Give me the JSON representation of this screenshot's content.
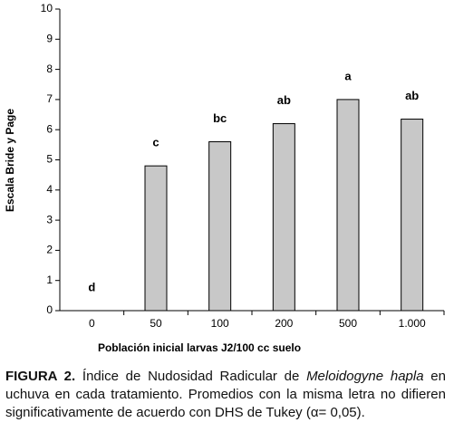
{
  "chart_data": {
    "type": "bar",
    "ylabel": "Escala Bride y Page",
    "xlabel": "Población inicial larvas J2/100 cc suelo",
    "categories": [
      "0",
      "50",
      "100",
      "200",
      "500",
      "1.000"
    ],
    "values": [
      0,
      4.8,
      5.6,
      6.2,
      7.0,
      6.35
    ],
    "letters": [
      "d",
      "c",
      "bc",
      "ab",
      "a",
      "ab"
    ],
    "color": "#c8c8c8",
    "ylim": [
      0,
      10
    ],
    "yticks": [
      0,
      1,
      2,
      3,
      4,
      5,
      6,
      7,
      8,
      9,
      10
    ],
    "grid": false
  },
  "caption": {
    "label": "FIGURA 2.",
    "text_before": "Índice de Nudosidad Radicular de",
    "species": "Meloidogyne hapla",
    "text_after": "en uchuva en cada tratamiento. Promedios con la misma letra no difieren significativamente de acuerdo con DHS de Tukey (α= 0,05)."
  }
}
